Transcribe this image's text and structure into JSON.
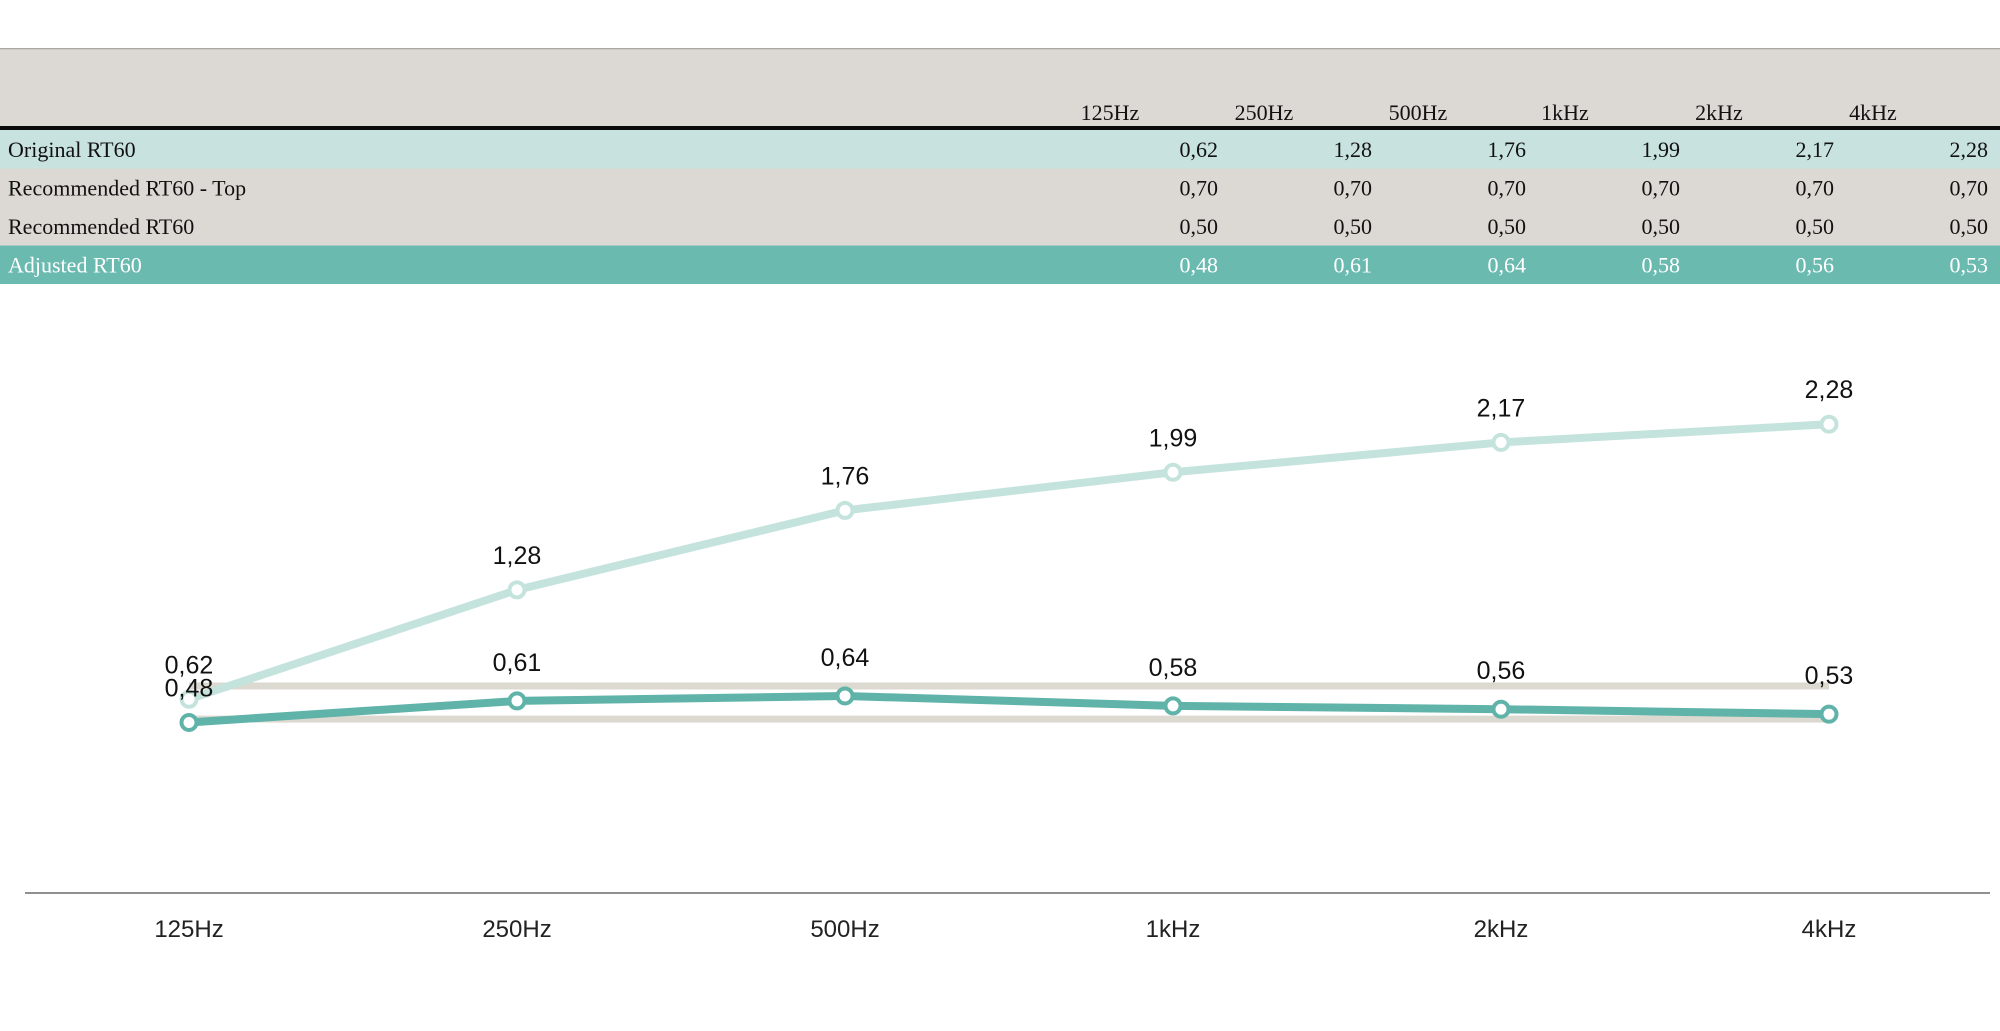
{
  "colors": {
    "header_bg": "#dcd9d4",
    "row_original": "#c8e2df",
    "row_recommended": "#dcd9d4",
    "row_adjusted": "#6bbab0",
    "series_original": "#c5e3dd",
    "series_adjusted": "#5fb3a8",
    "reference_lines": "#dcd9d1"
  },
  "table": {
    "headers": [
      "125Hz",
      "250Hz",
      "500Hz",
      "1kHz",
      "2kHz",
      "4kHz"
    ],
    "rows": [
      {
        "label": "Original RT60",
        "values": [
          "0,62",
          "1,28",
          "1,76",
          "1,99",
          "2,17",
          "2,28"
        ]
      },
      {
        "label": "Recommended RT60 - Top",
        "values": [
          "0,70",
          "0,70",
          "0,70",
          "0,70",
          "0,70",
          "0,70"
        ]
      },
      {
        "label": "Recommended RT60",
        "values": [
          "0,50",
          "0,50",
          "0,50",
          "0,50",
          "0,50",
          "0,50"
        ]
      },
      {
        "label": "Adjusted RT60",
        "values": [
          "0,48",
          "0,61",
          "0,64",
          "0,58",
          "0,56",
          "0,53"
        ]
      }
    ]
  },
  "chart_data": {
    "type": "line",
    "categories": [
      "125Hz",
      "250Hz",
      "500Hz",
      "1kHz",
      "2kHz",
      "4kHz"
    ],
    "ylim": [
      0,
      2.5
    ],
    "grid": false,
    "legend": "none",
    "series": [
      {
        "values": [
          0.62,
          1.28,
          1.76,
          1.99,
          2.17,
          2.28
        ],
        "labels": [
          "0,62",
          "1,28",
          "1,76",
          "1,99",
          "2,17",
          "2,28"
        ],
        "color": "#c5e3dd",
        "style": "line-markers"
      },
      {
        "values": [
          0.7,
          0.7,
          0.7,
          0.7,
          0.7,
          0.7
        ],
        "color": "#dcd9d1",
        "style": "line"
      },
      {
        "values": [
          0.5,
          0.5,
          0.5,
          0.5,
          0.5,
          0.5
        ],
        "color": "#dcd9d1",
        "style": "line"
      },
      {
        "values": [
          0.48,
          0.61,
          0.64,
          0.58,
          0.56,
          0.53
        ],
        "labels": [
          "0,48",
          "0,61",
          "0,64",
          "0,58",
          "0,56",
          "0,53"
        ],
        "color": "#5fb3a8",
        "style": "line-markers"
      }
    ]
  }
}
